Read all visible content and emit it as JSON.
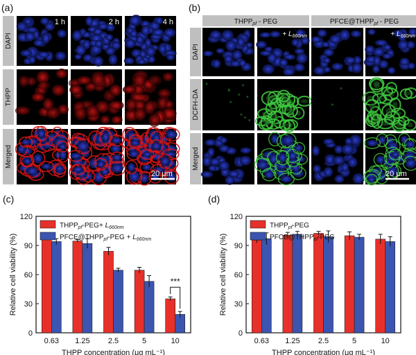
{
  "colors": {
    "red": "#e8302a",
    "blue": "#3b55b0",
    "dapi": "#2b3fd8",
    "thpp": "#d01515",
    "dcfh": "#3fc53f",
    "header": "#bfbfbf"
  },
  "panel_a": {
    "label": "(a)",
    "row_labels": [
      "DAPI",
      "THPP",
      "Merged"
    ],
    "time_labels": [
      "1 h",
      "2 h",
      "4 h"
    ],
    "scale_bar": "20 μm"
  },
  "panel_b": {
    "label": "(b)",
    "group_headers": [
      {
        "main": "THPP",
        "sub": "pf",
        "tail": " - PEG"
      },
      {
        "main": "PFCE@THPP",
        "sub": "pf",
        "tail": " - PEG"
      }
    ],
    "laser_label": {
      "prefix": "+ ",
      "main": "L",
      "sub": "660nm"
    },
    "row_labels": [
      "DAPI",
      "DCFH-DA",
      "Merged"
    ],
    "scale_bar": "20 μm"
  },
  "chart_data": [
    {
      "panel": "(c)",
      "type": "bar",
      "categories": [
        "0.63",
        "1.25",
        "2.5",
        "5",
        "10"
      ],
      "xlabel": "THPP concentration (μg mL⁻¹)",
      "ylabel": "Relative cell viability (%)",
      "ylim": [
        0,
        120
      ],
      "yticks": [
        0,
        30,
        60,
        90,
        120
      ],
      "legend_position": "top-left",
      "series": [
        {
          "name": "THPPpf-PEG+ L660nm",
          "legend_main": "THPP",
          "legend_sub": "pf",
          "legend_mid": "-PEG+ ",
          "legend_l": "L",
          "legend_lsub": "660nm",
          "values": [
            100.5,
            94.5,
            84,
            64.5,
            35
          ],
          "errors": [
            2,
            1.5,
            4,
            3,
            2
          ],
          "color": "#e8302a"
        },
        {
          "name": "PFCE@THPPpf-PEG + L660nm",
          "legend_main": "PFCE@THPP",
          "legend_sub": "pf",
          "legend_mid": "-PEG + ",
          "legend_l": "L",
          "legend_lsub": "660nm",
          "values": [
            94,
            92,
            64.5,
            53,
            19
          ],
          "errors": [
            3,
            5,
            2,
            6,
            3
          ],
          "color": "#3b55b0"
        }
      ],
      "annotation": "***"
    },
    {
      "panel": "(d)",
      "type": "bar",
      "categories": [
        "0.63",
        "1.25",
        "2.5",
        "5",
        "10"
      ],
      "xlabel": "THPP concentration (μg mL⁻¹)",
      "ylabel": "Relative cell viability (%)",
      "ylim": [
        0,
        120
      ],
      "yticks": [
        0,
        30,
        60,
        90,
        120
      ],
      "legend_position": "top-left",
      "series": [
        {
          "name": "THPPpf-PEG",
          "legend_main": "THPP",
          "legend_sub": "pf",
          "legend_mid": "-PEG",
          "legend_l": "",
          "legend_lsub": "",
          "values": [
            95.5,
            100.5,
            102.5,
            100,
            96.5
          ],
          "errors": [
            3,
            3,
            2,
            4,
            5
          ],
          "color": "#e8302a"
        },
        {
          "name": "PFCE@THPPpf-PEG",
          "legend_main": "PFCE@THPP",
          "legend_sub": "pf",
          "legend_mid": "-PEG",
          "legend_l": "",
          "legend_lsub": "",
          "values": [
            97,
            101.5,
            99,
            98.5,
            94
          ],
          "errors": [
            6,
            3,
            6,
            3,
            5
          ],
          "color": "#3b55b0"
        }
      ]
    }
  ]
}
